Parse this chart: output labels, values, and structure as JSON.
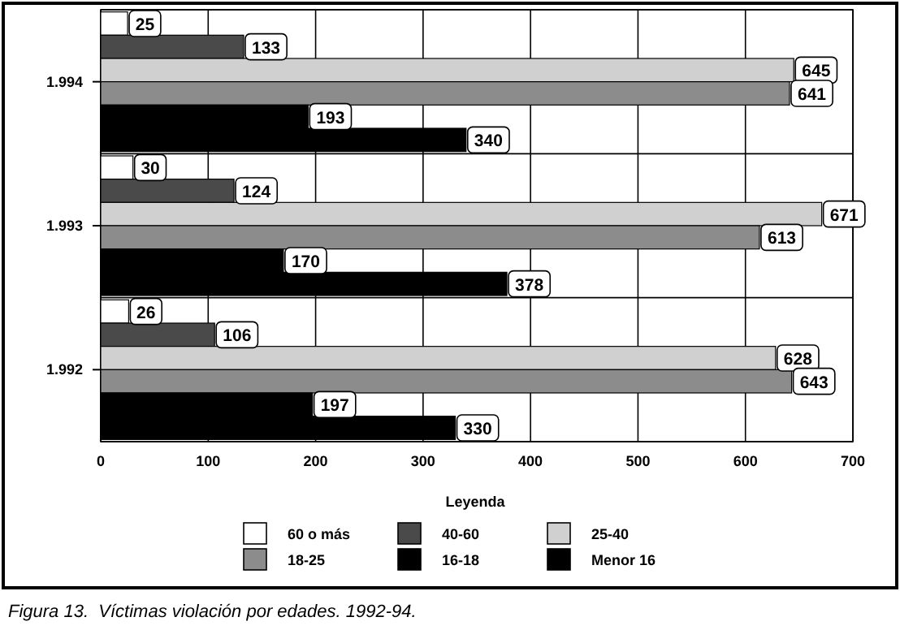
{
  "chart_data": {
    "type": "bar",
    "orientation": "horizontal",
    "categories": [
      "1.994",
      "1.993",
      "1.992"
    ],
    "series": [
      {
        "name": "60 o más",
        "color": "#ffffff",
        "values": [
          25,
          30,
          26
        ]
      },
      {
        "name": "40-60",
        "color": "#4a4a4a",
        "values": [
          133,
          124,
          106
        ]
      },
      {
        "name": "25-40",
        "color": "#d0d0d0",
        "values": [
          645,
          671,
          628
        ]
      },
      {
        "name": "18-25",
        "color": "#8c8c8c",
        "values": [
          641,
          613,
          643
        ]
      },
      {
        "name": "16-18",
        "color": "#000000",
        "values": [
          193,
          170,
          197
        ]
      },
      {
        "name": "Menor 16",
        "color": "#000000",
        "values": [
          340,
          378,
          330
        ]
      }
    ],
    "xlim": [
      0,
      700
    ],
    "xticks": [
      0,
      100,
      200,
      300,
      400,
      500,
      600,
      700
    ],
    "grid": true,
    "data_labels": true,
    "legend": "bottom",
    "legend_title": "Leyenda",
    "annotations": [
      "Figura 13.  Víctimas violación por edades. 1992-94."
    ]
  }
}
